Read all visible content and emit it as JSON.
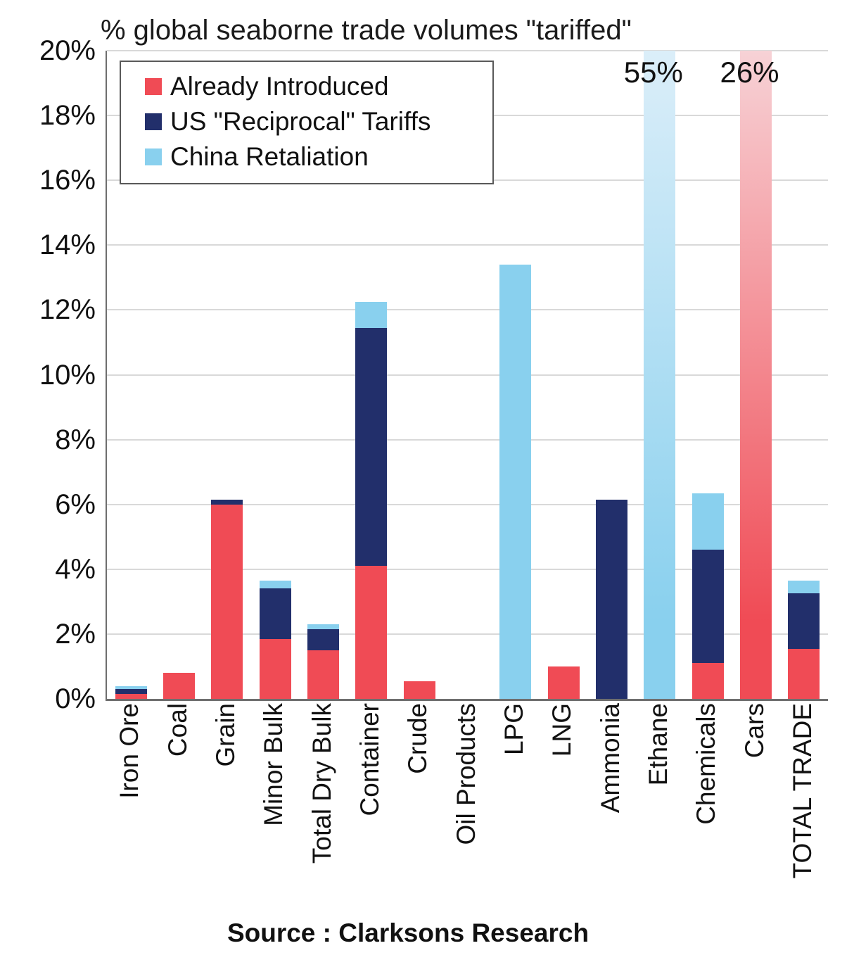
{
  "chart_data": {
    "type": "bar",
    "stacked": true,
    "title": "% global seaborne trade volumes \"tariffed\"",
    "source": "Source : Clarksons Research",
    "xlabel": "",
    "ylabel": "",
    "ylim": [
      0,
      20
    ],
    "ytick_step": 2,
    "yticks": [
      "0%",
      "2%",
      "4%",
      "6%",
      "8%",
      "10%",
      "12%",
      "14%",
      "16%",
      "18%",
      "20%"
    ],
    "grid": "horizontal",
    "legend_position": "top-left",
    "categories": [
      "Iron Ore",
      "Coal",
      "Grain",
      "Minor Bulk",
      "Total Dry Bulk",
      "Container",
      "Crude",
      "Oil Products",
      "LPG",
      "LNG",
      "Ammonia",
      "Ethane",
      "Chemicals",
      "Cars",
      "TOTAL TRADE"
    ],
    "series": [
      {
        "name": "Already Introduced",
        "color": "#F04B55",
        "fade_top_color": "#F7D2D6",
        "values": [
          0.15,
          0.8,
          6.0,
          1.85,
          1.5,
          4.1,
          0.55,
          0,
          0,
          1.0,
          0,
          0,
          1.1,
          26,
          1.55
        ]
      },
      {
        "name": "US \"Reciprocal\" Tariffs",
        "color": "#222F6B",
        "fade_top_color": "#C7CCE2",
        "values": [
          0.15,
          0,
          0.15,
          1.55,
          0.65,
          7.35,
          0,
          0,
          0,
          0,
          6.15,
          0,
          3.5,
          0,
          1.7
        ]
      },
      {
        "name": "China Retaliation",
        "color": "#89D0EE",
        "fade_top_color": "#DBEEF9",
        "values": [
          0.1,
          0,
          0,
          0.25,
          0.15,
          0.8,
          0,
          0,
          13.4,
          0,
          0,
          55,
          1.75,
          0,
          0.4
        ]
      }
    ],
    "annotations": [
      {
        "category": "Ethane",
        "text": "55%"
      },
      {
        "category": "Cars",
        "text": "26%"
      }
    ]
  },
  "style": {
    "grid_color": "#d9d9d9",
    "axis_color": "#6e6e6e",
    "text_color": "#111111",
    "background": "#ffffff"
  }
}
